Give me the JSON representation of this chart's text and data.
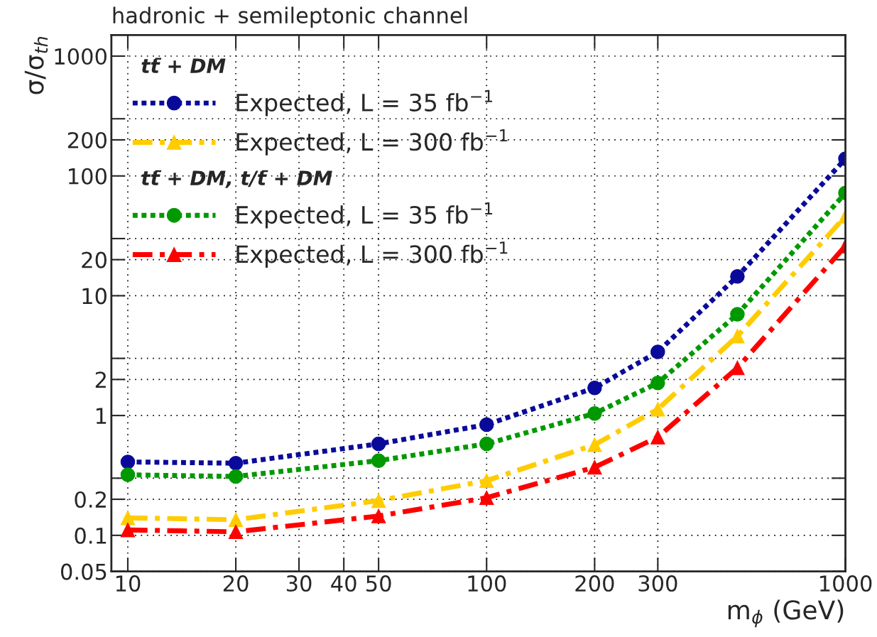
{
  "chart_data": {
    "type": "line",
    "title": "hadronic + semileptonic channel",
    "xlabel": "m$_{ϕ}$ (GeV)",
    "ylabel": "σ/σ$_{th}$",
    "annotations": [
      "tt̄ + DM",
      "tt̄ + DM, t/t̄ + DM"
    ],
    "x": [
      10,
      20,
      50,
      100,
      200,
      300,
      500,
      1000
    ],
    "series": [
      {
        "name": "Expected, L = 35 fb$^{−1}$",
        "color": "#0a0a9a",
        "marker": "circle",
        "line_style": "dotted",
        "values": [
          0.41,
          0.4,
          0.58,
          0.84,
          1.7,
          3.4,
          14.5,
          139
        ]
      },
      {
        "name": "Expected, L = 300 fb$^{−1}$",
        "color": "#ffcc00",
        "marker": "triangle",
        "line_style": "dashed",
        "values": [
          0.14,
          0.135,
          0.195,
          0.286,
          0.57,
          1.13,
          4.6,
          46
        ]
      },
      {
        "name": "Expected, L = 35 fb$^{−1}$",
        "color": "#009900",
        "marker": "circle",
        "line_style": "dotted",
        "values": [
          0.32,
          0.31,
          0.42,
          0.58,
          1.04,
          1.87,
          7.0,
          72
        ]
      },
      {
        "name": "Expected, L = 300 fb$^{−1}$",
        "color": "#ff0000",
        "marker": "triangle",
        "line_style": "dashed",
        "values": [
          0.111,
          0.107,
          0.145,
          0.206,
          0.37,
          0.66,
          2.5,
          26
        ]
      }
    ],
    "log": "xy",
    "xlim": [
      9,
      1000
    ],
    "ylim": [
      0.05,
      1500
    ],
    "xticks": [
      10,
      20,
      30,
      40,
      50,
      100,
      200,
      300,
      1000
    ],
    "yticks": [
      0.05,
      0.1,
      0.2,
      {
        "value": 0.3,
        "label": null
      },
      1,
      2,
      {
        "value": 3,
        "label": null
      },
      10,
      20,
      {
        "value": 30,
        "label": null
      },
      100,
      200,
      {
        "value": 300,
        "label": null
      },
      1000
    ],
    "grid": true,
    "legend": "top left"
  }
}
